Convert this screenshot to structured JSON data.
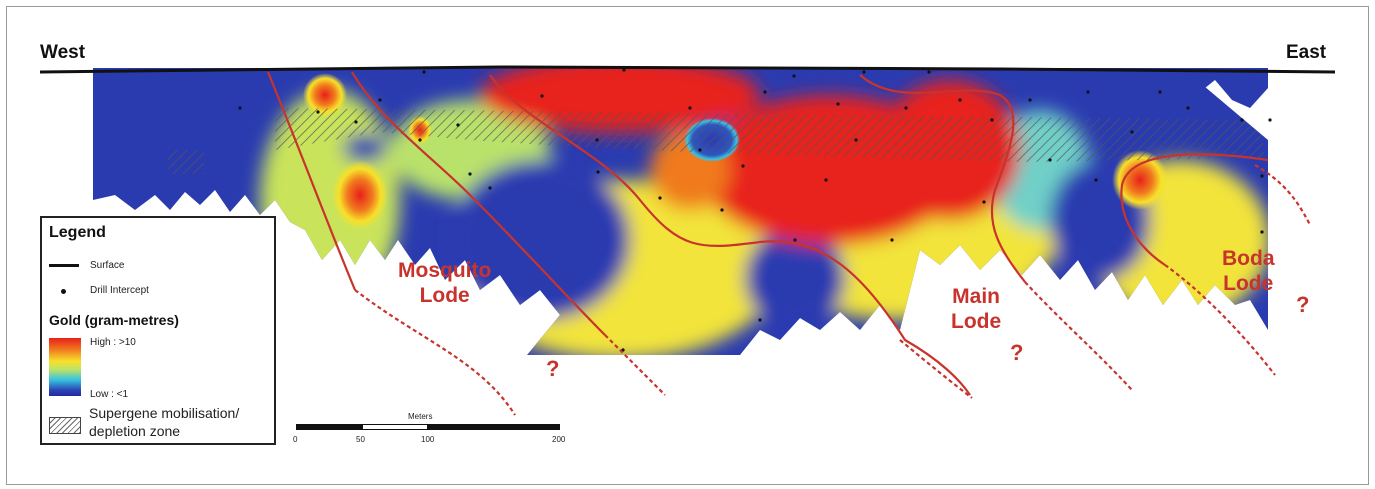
{
  "directions": {
    "west": "West",
    "east": "East"
  },
  "lodes": [
    {
      "name_line1": "Mosquito",
      "name_line2": "Lode"
    },
    {
      "name_line1": "Main",
      "name_line2": "Lode"
    },
    {
      "name_line1": "Boda",
      "name_line2": "Lode"
    }
  ],
  "question_mark": "?",
  "legend": {
    "title": "Legend",
    "surface": "Surface",
    "drill_intercept": "Drill Intercept",
    "gold_title": "Gold (gram-metres)",
    "high": "High : >10",
    "low": "Low : <1",
    "supergene_line1": "Supergene mobilisation/",
    "supergene_line2": "depletion zone"
  },
  "scale_bar": {
    "unit": "Meters",
    "ticks": [
      "0",
      "50",
      "100",
      "200"
    ]
  },
  "colors": {
    "high": "#e8201b",
    "mid": "#f7e02a",
    "low": "#2a3bb0",
    "fault": "#c8342c",
    "label": "#c8342c"
  }
}
